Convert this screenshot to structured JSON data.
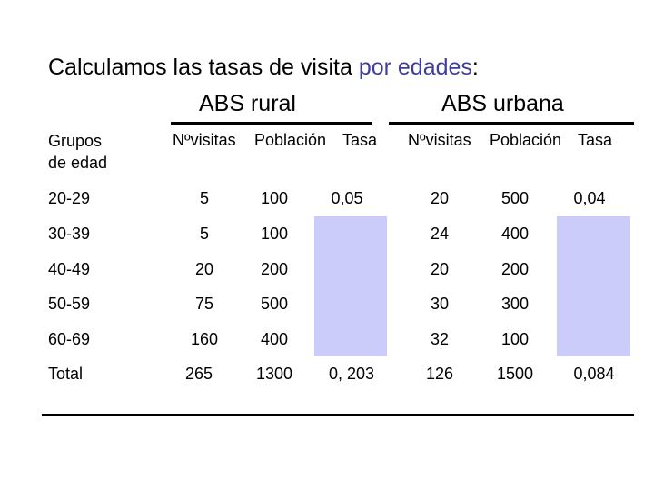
{
  "title": {
    "prefix": "Calculamos las tasas de visita ",
    "highlight": "por edades",
    "suffix": ":"
  },
  "groups": {
    "rural": "ABS rural",
    "urbana": "ABS urbana"
  },
  "headers": {
    "grupos_line1": "Grupos",
    "grupos_line2": "de edad",
    "rural": {
      "visitas": "Nºvisitas",
      "poblacion": "Población",
      "tasa": "Tasa"
    },
    "urbana": {
      "visitas": "Nºvisitas",
      "poblacion": "Población",
      "tasa": "Tasa"
    }
  },
  "rows": [
    {
      "grupo": "20-29",
      "r_visitas": "5",
      "r_poblacion": "100",
      "r_tasa": "0,05",
      "u_visitas": "20",
      "u_poblacion": "500",
      "u_tasa": "0,04"
    },
    {
      "grupo": "30-39",
      "r_visitas": "5",
      "r_poblacion": "100",
      "r_tasa": "",
      "u_visitas": "24",
      "u_poblacion": "400",
      "u_tasa": ""
    },
    {
      "grupo": "40-49",
      "r_visitas": "20",
      "r_poblacion": "200",
      "r_tasa": "",
      "u_visitas": "20",
      "u_poblacion": "200",
      "u_tasa": ""
    },
    {
      "grupo": "50-59",
      "r_visitas": "75",
      "r_poblacion": "500",
      "r_tasa": "",
      "u_visitas": "30",
      "u_poblacion": "300",
      "u_tasa": ""
    },
    {
      "grupo": "60-69",
      "r_visitas": "160",
      "r_poblacion": "400",
      "r_tasa": "",
      "u_visitas": "32",
      "u_poblacion": "100",
      "u_tasa": ""
    },
    {
      "grupo": "Total",
      "r_visitas": "265",
      "r_poblacion": "1300",
      "r_tasa": "0, 203",
      "u_visitas": "126",
      "u_poblacion": "1500",
      "u_tasa": "0,084"
    }
  ],
  "colors": {
    "highlight": "#3f3f9b",
    "blank_cell": "#ccccfa"
  }
}
